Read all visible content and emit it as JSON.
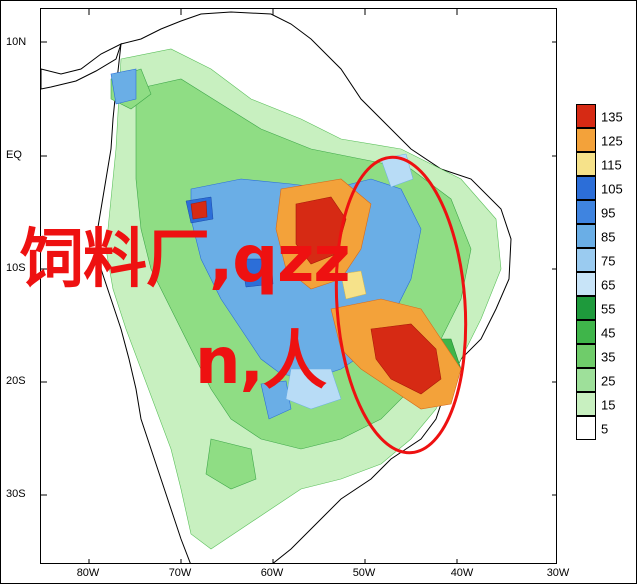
{
  "map": {
    "lat_labels": [
      "10N",
      "EQ",
      "10S",
      "20S",
      "30S"
    ],
    "lon_labels": [
      "80W",
      "70W",
      "60W",
      "50W",
      "40W",
      "30W"
    ],
    "colors": {
      "coast": "#000000",
      "light_green": "#c8f0c0",
      "mid_green": "#8fdd84",
      "dark_green": "#3fb54a",
      "light_blue": "#b8dcf6",
      "mid_blue": "#6aaee6",
      "dark_blue": "#2c6ed8",
      "yellow": "#f6e28a",
      "orange": "#f3a23a",
      "red_orange": "#ee5a24",
      "red": "#d62a14",
      "annotation": "#ee1111"
    }
  },
  "legend": {
    "items": [
      {
        "label": "135",
        "color": "#d62a14"
      },
      {
        "label": "125",
        "color": "#f3a23a"
      },
      {
        "label": "115",
        "color": "#f6e28a"
      },
      {
        "label": "105",
        "color": "#2c6ed8"
      },
      {
        "label": "95",
        "color": "#3f84e0"
      },
      {
        "label": "85",
        "color": "#6aaee6"
      },
      {
        "label": "75",
        "color": "#9acbf0"
      },
      {
        "label": "65",
        "color": "#c8e4f8"
      },
      {
        "label": "55",
        "color": "#1e9a3c"
      },
      {
        "label": "45",
        "color": "#3fb54a"
      },
      {
        "label": "35",
        "color": "#6fcc6a"
      },
      {
        "label": "25",
        "color": "#9ee09a"
      },
      {
        "label": "15",
        "color": "#c8f0c0"
      },
      {
        "label": "5",
        "color": "#ffffff"
      }
    ]
  },
  "overlay": {
    "line1": "饲料厂,qzz",
    "line2": "n,人"
  }
}
